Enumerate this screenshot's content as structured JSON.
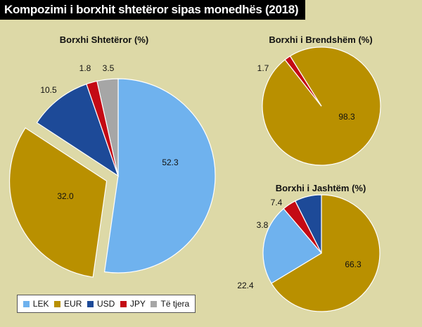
{
  "page": {
    "title": "Kompozimi i borxhit shtetëror sipas monedhës (2018)"
  },
  "colors": {
    "LEK": "#6fb2ee",
    "EUR": "#b99000",
    "USD": "#1d4a98",
    "JPY": "#c40a14",
    "Të tjera": "#a6a6a6",
    "background": "#ddd9a7"
  },
  "legend": [
    {
      "label": "LEK",
      "key": "LEK"
    },
    {
      "label": "EUR",
      "key": "EUR"
    },
    {
      "label": "USD",
      "key": "USD"
    },
    {
      "label": "JPY",
      "key": "JPY"
    },
    {
      "label": "Të tjera",
      "key": "Të tjera"
    }
  ],
  "chart_data": [
    {
      "type": "pie",
      "title": "Borxhi Shtetëror (%)",
      "categories": [
        "LEK",
        "EUR",
        "USD",
        "JPY",
        "Të tjera"
      ],
      "values": [
        52.3,
        32.0,
        10.5,
        1.8,
        3.5
      ],
      "value_labels": [
        "52.3",
        "32.0",
        "10.5",
        "1.8",
        "3.5"
      ],
      "exploded": [
        "EUR"
      ]
    },
    {
      "type": "pie",
      "title": "Borxhi i Brendshëm (%)",
      "categories": [
        "EUR",
        "JPY"
      ],
      "values": [
        98.3,
        1.7
      ],
      "value_labels": [
        "98.3",
        "1.7"
      ]
    },
    {
      "type": "pie",
      "title": "Borxhi i Jashtëm (%)",
      "categories": [
        "EUR",
        "LEK",
        "JPY",
        "USD"
      ],
      "values": [
        66.3,
        22.4,
        3.8,
        7.4
      ],
      "value_labels": [
        "66.3",
        "22.4",
        "3.8",
        "7.4"
      ]
    }
  ]
}
